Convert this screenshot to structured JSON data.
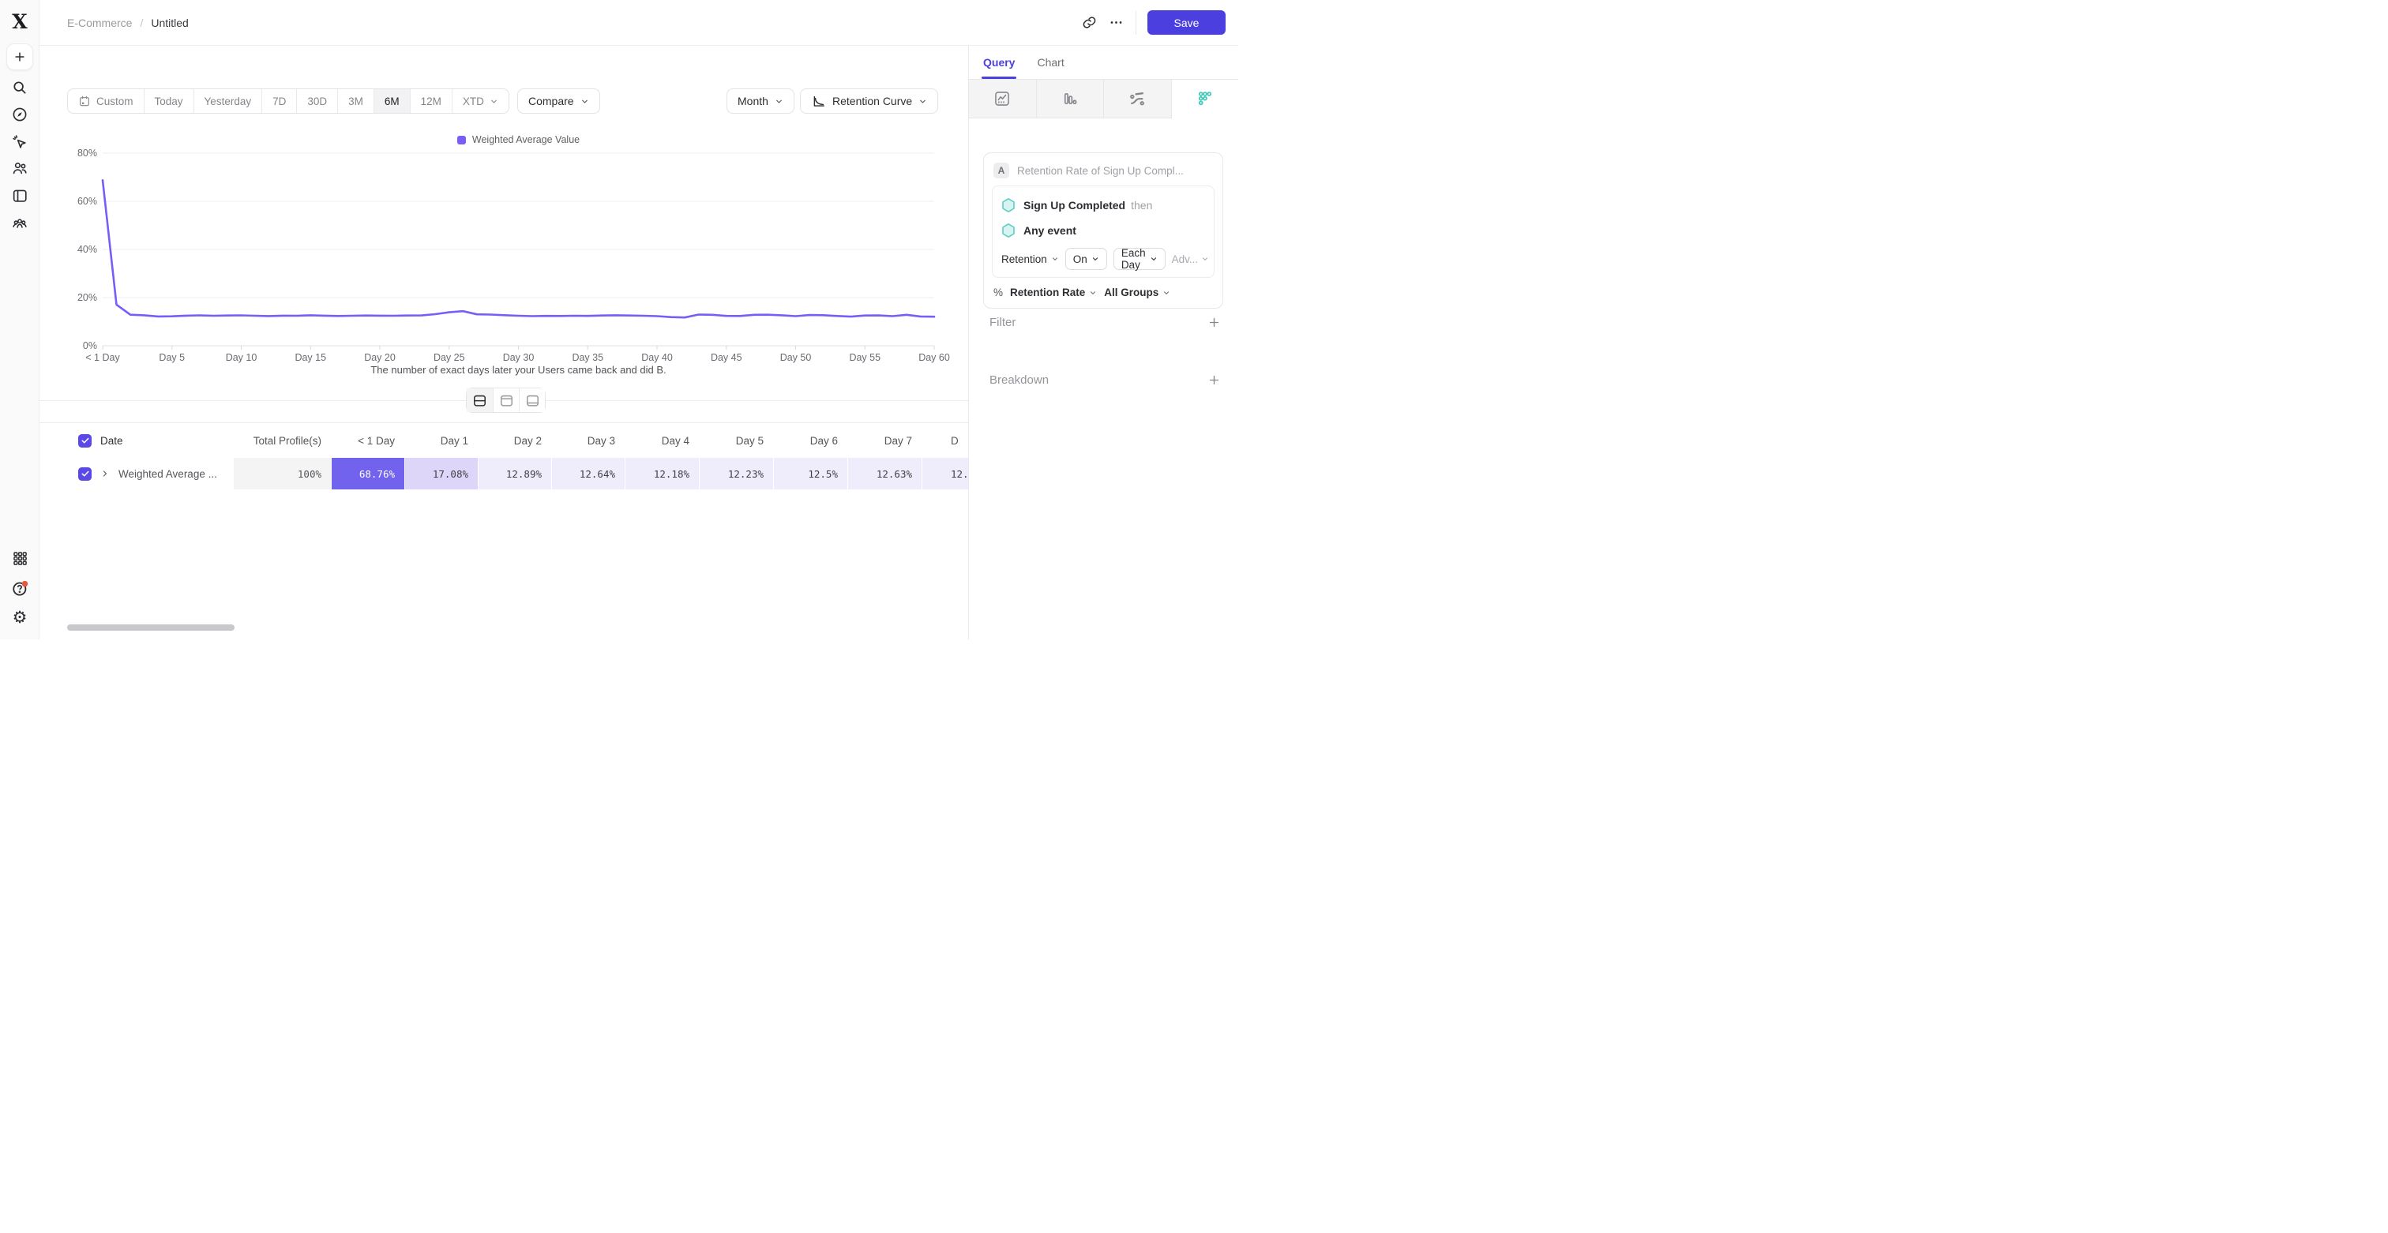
{
  "header": {
    "breadcrumb": {
      "parent": "E-Commerce",
      "separator": "/",
      "current": "Untitled"
    },
    "save_label": "Save"
  },
  "sidebar": {
    "icons": [
      "plus",
      "search",
      "compass",
      "pointer-spark",
      "users",
      "board",
      "cohorts"
    ],
    "bottom_icons": [
      "apps-grid",
      "help",
      "settings"
    ]
  },
  "toolbar": {
    "ranges": [
      {
        "label": "Custom",
        "icon": "calendar-icon"
      },
      {
        "label": "Today"
      },
      {
        "label": "Yesterday"
      },
      {
        "label": "7D"
      },
      {
        "label": "30D"
      },
      {
        "label": "3M"
      },
      {
        "label": "6M"
      },
      {
        "label": "12M"
      },
      {
        "label": "XTD",
        "caret": true
      }
    ],
    "selected_range": "6M",
    "compare_label": "Compare",
    "granularity_label": "Month",
    "chart_type_label": "Retention Curve"
  },
  "chart_data": {
    "type": "line",
    "title": "",
    "legend": [
      "Weighted Average Value"
    ],
    "legend_position": "top-center",
    "grid": "horizontal",
    "ylim": [
      0,
      80
    ],
    "y_tick_labels": [
      "0%",
      "20%",
      "40%",
      "60%",
      "80%"
    ],
    "x_tick_step_days": 5,
    "x_tick_labels": [
      "< 1 Day",
      "Day 5",
      "Day 10",
      "Day 15",
      "Day 20",
      "Day 25",
      "Day 30",
      "Day 35",
      "Day 40",
      "Day 45",
      "Day 50",
      "Day 55",
      "Day 60"
    ],
    "caption": "The number of exact days later your Users came back and did B.",
    "series": [
      {
        "name": "Weighted Average Value",
        "color": "#7a5cf7",
        "unit": "%",
        "x_start_day": 0,
        "values": [
          68.76,
          17.08,
          12.89,
          12.64,
          12.18,
          12.23,
          12.5,
          12.63,
          12.45,
          12.55,
          12.62,
          12.45,
          12.32,
          12.5,
          12.45,
          12.65,
          12.5,
          12.35,
          12.45,
          12.55,
          12.5,
          12.45,
          12.55,
          12.6,
          13.1,
          13.9,
          14.35,
          13.05,
          12.95,
          12.7,
          12.45,
          12.3,
          12.4,
          12.35,
          12.45,
          12.4,
          12.55,
          12.65,
          12.55,
          12.45,
          12.3,
          11.9,
          11.75,
          12.95,
          12.85,
          12.4,
          12.35,
          12.85,
          12.9,
          12.65,
          12.3,
          12.75,
          12.7,
          12.35,
          12.1,
          12.55,
          12.6,
          12.3,
          12.85,
          12.15,
          12.05
        ]
      }
    ]
  },
  "view_toggle": {
    "options": [
      "split-view",
      "chart-only",
      "table-only"
    ],
    "selected": "split-view"
  },
  "table": {
    "header": [
      "Date",
      "Total Profile(s)",
      "< 1 Day",
      "Day 1",
      "Day 2",
      "Day 3",
      "Day 4",
      "Day 5",
      "Day 6",
      "Day 7",
      "D"
    ],
    "rows": [
      {
        "checked": true,
        "label": "Weighted Average ...",
        "values": [
          "100%",
          "68.76%",
          "17.08%",
          "12.89%",
          "12.64%",
          "12.18%",
          "12.23%",
          "12.5%",
          "12.63%",
          "12."
        ]
      }
    ]
  },
  "panel": {
    "tabs": [
      {
        "label": "Query",
        "active": true
      },
      {
        "label": "Chart",
        "active": false
      }
    ],
    "viz_options": [
      "line-chart",
      "bar-chart",
      "flows",
      "retention"
    ],
    "viz_selected": "retention",
    "query": {
      "badge": "A",
      "title": "Retention Rate of Sign Up Compl...",
      "event_a": "Sign Up Completed",
      "event_a_suffix": "then",
      "event_b": "Any event",
      "retention_label": "Retention",
      "on_label": "On",
      "each_label": "Each Day",
      "advanced_label": "Adv...",
      "measure_prefix": "%",
      "measure_label": "Retention Rate",
      "groups_label": "All Groups"
    },
    "filter_label": "Filter",
    "breakdown_label": "Breakdown"
  },
  "colors": {
    "accent": "#4b3fe0",
    "tab_active": "#4c40e0",
    "line": "#7a5cf7",
    "cell_strong": "#7263ee",
    "cell_day1": "#ddd6f8",
    "cell_light": "#efecfb",
    "cell_gray": "#f4f4f5",
    "teal_fill": "#d9f4f0",
    "teal_stroke": "#54cfc0",
    "viz_selected_teal": "#45cabb",
    "help_badge": "#e8573f",
    "checkbox": "#5a49e6"
  }
}
